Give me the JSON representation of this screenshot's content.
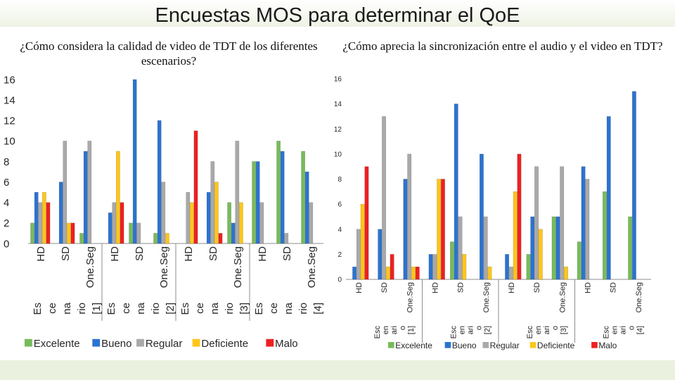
{
  "page": {
    "title": "Encuestas MOS para determinar el QoE"
  },
  "colors": {
    "Excelente": "#77bb5a",
    "Bueno": "#2b73d0",
    "Regular": "#a9a9a9",
    "Deficiente": "#ffc61a",
    "Malo": "#ee2020"
  },
  "chart_data": [
    {
      "type": "bar",
      "title": "¿Cómo considera la calidad de video de TDT de los diferentes escenarios?",
      "categories": [
        "HD",
        "SD",
        "One.Seg",
        "HD",
        "SD",
        "One.Seg",
        "HD",
        "SD",
        "One.Seg",
        "HD",
        "SD",
        "One.Seg"
      ],
      "groups": [
        "Escenario [1]",
        "Escenario [2]",
        "Escenario [3]",
        "Escenario [4]"
      ],
      "series": [
        {
          "name": "Excelente",
          "values": [
            2,
            0,
            1,
            0,
            2,
            1,
            0,
            0,
            4,
            8,
            10,
            9
          ]
        },
        {
          "name": "Bueno",
          "values": [
            5,
            6,
            9,
            3,
            16,
            12,
            0,
            5,
            2,
            8,
            9,
            7
          ]
        },
        {
          "name": "Regular",
          "values": [
            4,
            10,
            10,
            4,
            2,
            6,
            5,
            8,
            10,
            4,
            1,
            4
          ]
        },
        {
          "name": "Deficiente",
          "values": [
            5,
            2,
            0,
            9,
            0,
            1,
            4,
            6,
            4,
            0,
            0,
            0
          ]
        },
        {
          "name": "Malo",
          "values": [
            4,
            2,
            0,
            4,
            0,
            0,
            11,
            1,
            0,
            0,
            0,
            0
          ]
        }
      ],
      "ylim": [
        0,
        16
      ],
      "yticks": [
        0,
        2,
        4,
        6,
        8,
        10,
        12,
        14,
        16
      ],
      "legend": "bottom",
      "grid": false
    },
    {
      "type": "bar",
      "title": "¿Cómo aprecia la sincronización entre el audio y el video en TDT?",
      "categories": [
        "HD",
        "SD",
        "One.Seg",
        "HD",
        "SD",
        "One.Seg",
        "HD",
        "SD",
        "One.Seg",
        "HD",
        "SD",
        "One.Seg"
      ],
      "groups": [
        "Escenario [1]",
        "Escenario [2]",
        "Escenario [3]",
        "Escenario [4]"
      ],
      "series": [
        {
          "name": "Excelente",
          "values": [
            0,
            0,
            0,
            0,
            3,
            0,
            0,
            2,
            5,
            3,
            7,
            5
          ]
        },
        {
          "name": "Bueno",
          "values": [
            1,
            4,
            8,
            2,
            14,
            10,
            2,
            5,
            5,
            9,
            13,
            15
          ]
        },
        {
          "name": "Regular",
          "values": [
            4,
            13,
            10,
            2,
            5,
            5,
            1,
            9,
            9,
            8,
            0,
            0
          ]
        },
        {
          "name": "Deficiente",
          "values": [
            6,
            1,
            1,
            8,
            2,
            1,
            7,
            4,
            1,
            0,
            0,
            0
          ]
        },
        {
          "name": "Malo",
          "values": [
            9,
            2,
            1,
            8,
            0,
            0,
            10,
            0,
            0,
            0,
            0,
            0
          ]
        }
      ],
      "ylim": [
        0,
        16
      ],
      "yticks": [
        0,
        2,
        4,
        6,
        8,
        10,
        12,
        14,
        16
      ],
      "legend": "bottom",
      "grid": false
    }
  ]
}
